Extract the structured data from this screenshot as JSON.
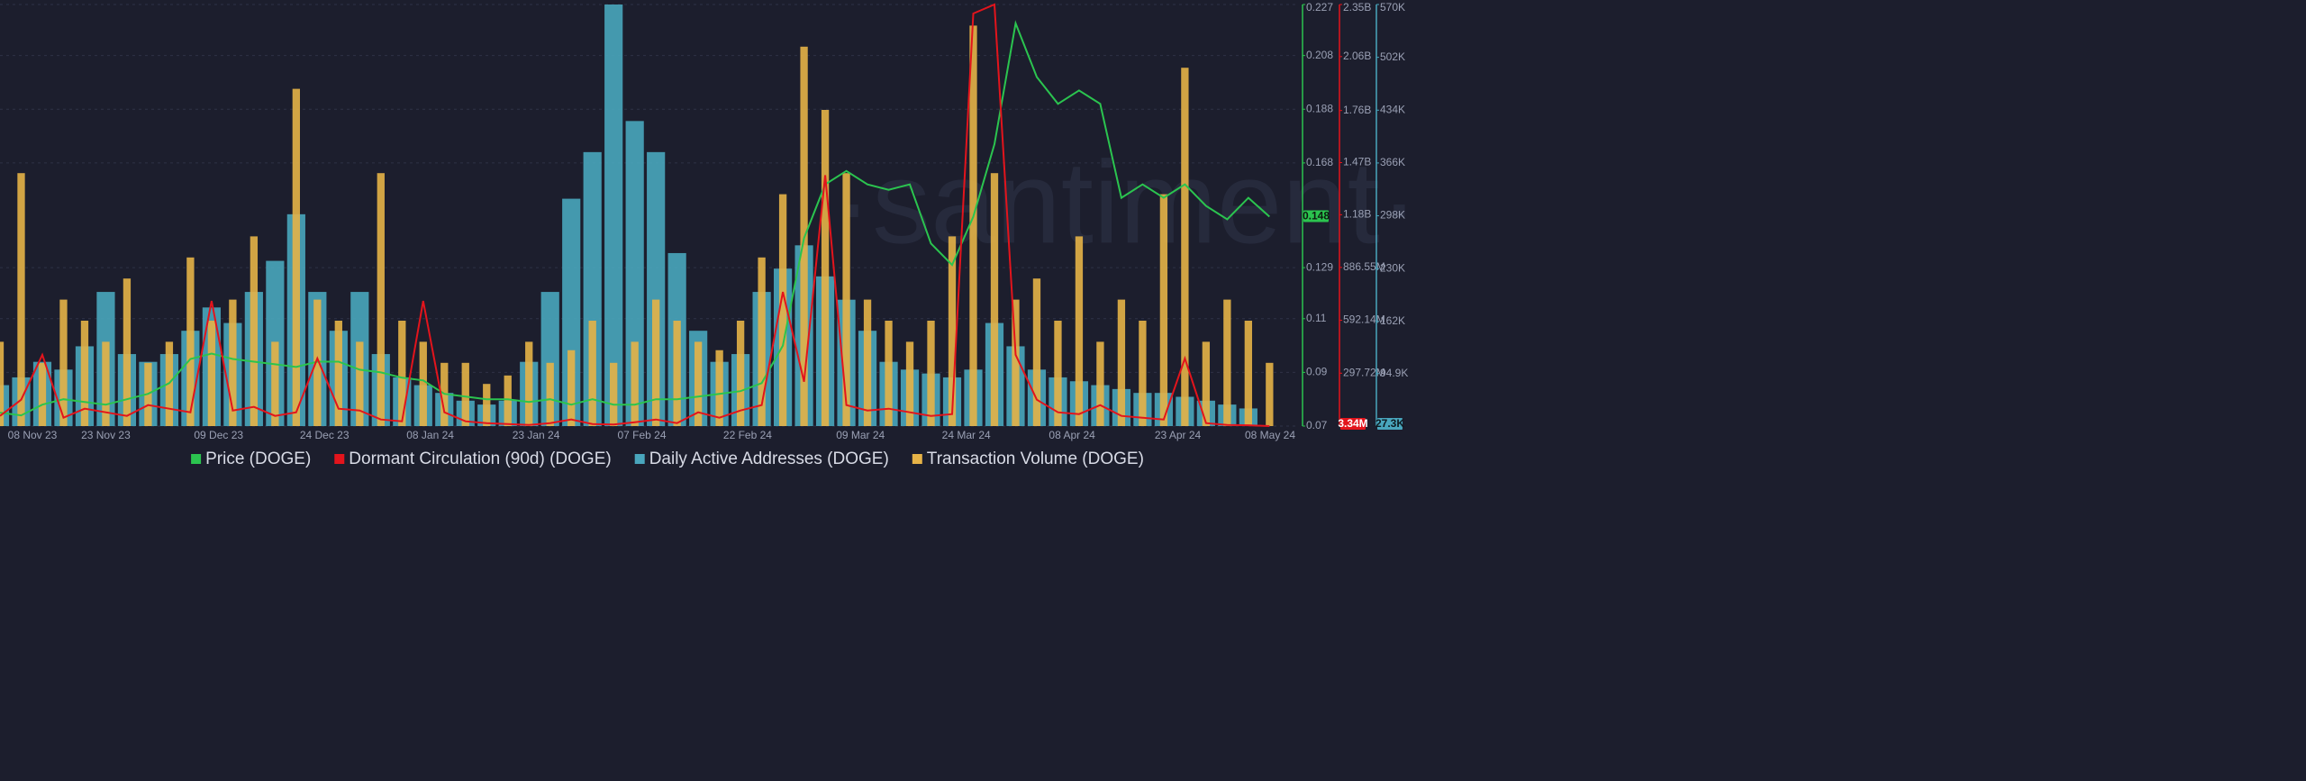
{
  "chart_data": {
    "type": "combo",
    "watermark": "·santiment·",
    "x": [
      "08 Nov 23",
      "11 Nov 23",
      "14 Nov 23",
      "17 Nov 23",
      "20 Nov 23",
      "23 Nov 23",
      "26 Nov 23",
      "29 Nov 23",
      "02 Dec 23",
      "05 Dec 23",
      "08 Dec 23",
      "11 Dec 23",
      "14 Dec 23",
      "17 Dec 23",
      "20 Dec 23",
      "23 Dec 23",
      "26 Dec 23",
      "29 Dec 23",
      "01 Jan 24",
      "04 Jan 24",
      "07 Jan 24",
      "10 Jan 24",
      "13 Jan 24",
      "16 Jan 24",
      "19 Jan 24",
      "22 Jan 24",
      "25 Jan 24",
      "28 Jan 24",
      "31 Jan 24",
      "03 Feb 24",
      "06 Feb 24",
      "09 Feb 24",
      "12 Feb 24",
      "15 Feb 24",
      "18 Feb 24",
      "21 Feb 24",
      "24 Feb 24",
      "27 Feb 24",
      "01 Mar 24",
      "04 Mar 24",
      "07 Mar 24",
      "10 Mar 24",
      "13 Mar 24",
      "16 Mar 24",
      "19 Mar 24",
      "22 Mar 24",
      "25 Mar 24",
      "28 Mar 24",
      "31 Mar 24",
      "03 Apr 24",
      "06 Apr 24",
      "09 Apr 24",
      "12 Apr 24",
      "15 Apr 24",
      "18 Apr 24",
      "21 Apr 24",
      "24 Apr 24",
      "27 Apr 24",
      "30 Apr 24",
      "03 May 24",
      "06 May 24"
    ],
    "xlim": [
      "08 Nov 23",
      "08 May 24"
    ],
    "xticks": [
      "08 Nov 23",
      "23 Nov 23",
      "09 Dec 23",
      "24 Dec 23",
      "08 Jan 24",
      "23 Jan 24",
      "07 Feb 24",
      "22 Feb 24",
      "09 Mar 24",
      "24 Mar 24",
      "08 Apr 24",
      "23 Apr 24",
      "08 May 24"
    ],
    "ylim": [
      0.07,
      0.227
    ],
    "yticks": [
      0.07,
      0.09,
      0.11,
      0.129,
      0.168,
      0.188,
      0.208,
      0.227
    ],
    "y2lim": [
      3300000,
      2350000000
    ],
    "y2ticks": [
      {
        "value": 297720000,
        "label": "297.72M"
      },
      {
        "value": 592140000,
        "label": "592.14M"
      },
      {
        "value": 886550000,
        "label": "886.55M"
      },
      {
        "value": 1180000000,
        "label": "1.18B"
      },
      {
        "value": 1470000000,
        "label": "1.47B"
      },
      {
        "value": 1760000000,
        "label": "1.76B"
      },
      {
        "value": 2060000000,
        "label": "2.06B"
      },
      {
        "value": 2350000000,
        "label": "2.35B"
      }
    ],
    "y3lim": [
      27300,
      570000
    ],
    "y3ticks": [
      {
        "value": 94900,
        "label": "94.9K"
      },
      {
        "value": 162000,
        "label": "162K"
      },
      {
        "value": 230000,
        "label": "230K"
      },
      {
        "value": 298000,
        "label": "298K"
      },
      {
        "value": 366000,
        "label": "366K"
      },
      {
        "value": 434000,
        "label": "434K"
      },
      {
        "value": 502000,
        "label": "502K"
      },
      {
        "value": 570000,
        "label": "570K"
      }
    ],
    "y4lim": [
      0,
      100
    ],
    "grid": true,
    "series": [
      {
        "name": "Price (DOGE)",
        "color": "#2bc44f",
        "style": "line",
        "axis": "y",
        "last_label": "0.148",
        "values": [
          0.075,
          0.074,
          0.078,
          0.08,
          0.079,
          0.078,
          0.08,
          0.082,
          0.086,
          0.095,
          0.097,
          0.095,
          0.094,
          0.093,
          0.092,
          0.094,
          0.094,
          0.091,
          0.09,
          0.088,
          0.087,
          0.082,
          0.081,
          0.08,
          0.08,
          0.079,
          0.08,
          0.078,
          0.08,
          0.078,
          0.078,
          0.08,
          0.08,
          0.081,
          0.082,
          0.083,
          0.086,
          0.1,
          0.14,
          0.16,
          0.165,
          0.16,
          0.158,
          0.16,
          0.138,
          0.13,
          0.148,
          0.175,
          0.22,
          0.2,
          0.19,
          0.195,
          0.19,
          0.155,
          0.16,
          0.155,
          0.16,
          0.152,
          0.147,
          0.155,
          0.148
        ]
      },
      {
        "name": "Dormant Circulation (90d) (DOGE)",
        "color": "#e3141c",
        "style": "line",
        "axis": "y2",
        "last_label": "3.34M",
        "values": [
          60000000,
          150000000,
          400000000,
          50000000,
          100000000,
          80000000,
          60000000,
          120000000,
          100000000,
          80000000,
          700000000,
          90000000,
          110000000,
          60000000,
          80000000,
          380000000,
          100000000,
          90000000,
          40000000,
          30000000,
          700000000,
          80000000,
          30000000,
          20000000,
          15000000,
          10000000,
          20000000,
          40000000,
          15000000,
          12000000,
          25000000,
          40000000,
          20000000,
          80000000,
          50000000,
          90000000,
          120000000,
          750000000,
          250000000,
          1400000000,
          120000000,
          90000000,
          100000000,
          80000000,
          60000000,
          70000000,
          2300000000,
          2350000000,
          400000000,
          150000000,
          80000000,
          70000000,
          120000000,
          60000000,
          50000000,
          40000000,
          380000000,
          20000000,
          10000000,
          8000000,
          3340000
        ]
      },
      {
        "name": "Daily Active Addresses (DOGE)",
        "color": "#49a6bd",
        "style": "bar",
        "axis": "y3",
        "last_label": "27.3K",
        "values": [
          80000,
          90000,
          110000,
          100000,
          130000,
          200000,
          120000,
          110000,
          120000,
          150000,
          180000,
          160000,
          200000,
          240000,
          300000,
          200000,
          150000,
          200000,
          120000,
          90000,
          80000,
          70000,
          60000,
          55000,
          60000,
          110000,
          200000,
          320000,
          380000,
          570000,
          420000,
          380000,
          250000,
          150000,
          110000,
          120000,
          200000,
          230000,
          260000,
          220000,
          190000,
          150000,
          110000,
          100000,
          95000,
          90000,
          100000,
          160000,
          130000,
          100000,
          90000,
          85000,
          80000,
          75000,
          70000,
          70000,
          65000,
          60000,
          55000,
          50000,
          27300
        ]
      },
      {
        "name": "Transaction Volume (DOGE)",
        "color": "#e6b347",
        "style": "thinbar",
        "axis": "y4",
        "values": [
          20,
          60,
          15,
          30,
          25,
          20,
          35,
          15,
          20,
          40,
          25,
          30,
          45,
          20,
          80,
          30,
          25,
          20,
          60,
          25,
          20,
          15,
          15,
          10,
          12,
          20,
          15,
          18,
          25,
          15,
          20,
          30,
          25,
          20,
          18,
          25,
          40,
          55,
          90,
          75,
          60,
          30,
          25,
          20,
          25,
          45,
          95,
          60,
          30,
          35,
          25,
          45,
          20,
          30,
          25,
          55,
          85,
          20,
          30,
          25,
          15
        ]
      }
    ]
  }
}
